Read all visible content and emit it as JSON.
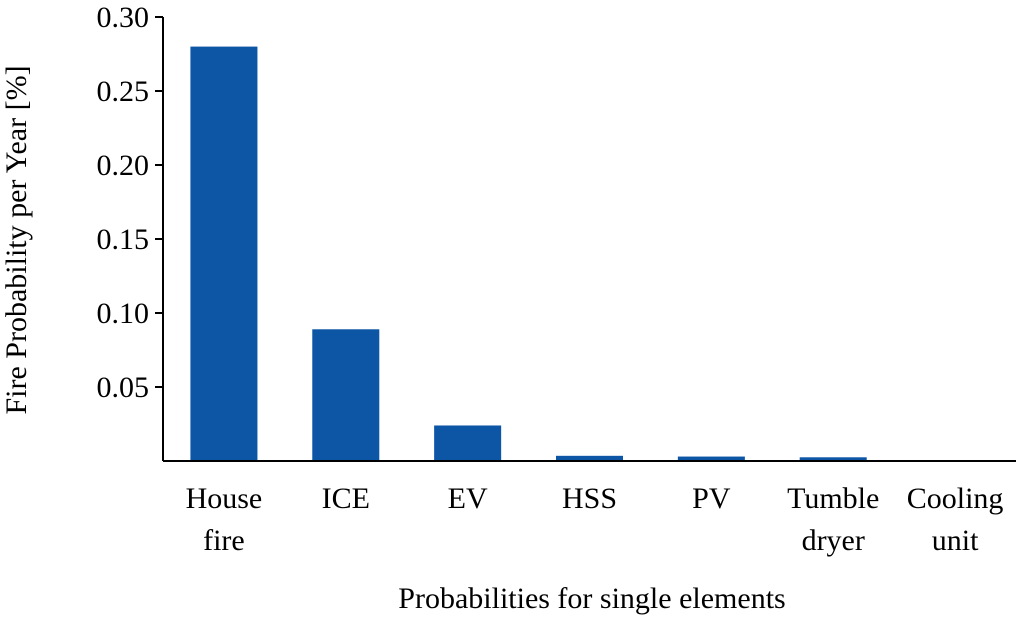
{
  "chart_data": {
    "type": "bar",
    "categories": [
      [
        "House",
        "fire"
      ],
      [
        "ICE"
      ],
      [
        "EV"
      ],
      [
        "HSS"
      ],
      [
        "PV"
      ],
      [
        "Tumble",
        "dryer"
      ],
      [
        "Cooling",
        "unit"
      ]
    ],
    "values": [
      0.28,
      0.089,
      0.024,
      0.0035,
      0.003,
      0.0025,
      0.0005
    ],
    "ylabel": "Fire Probability per Year [%]",
    "xlabel": "Probabilities for single elements",
    "ylim": [
      0,
      0.3
    ],
    "yticks": [
      "0.30",
      "0.25",
      "0.20",
      "0.15",
      "0.10",
      "0.05"
    ],
    "ytick_values": [
      0.3,
      0.25,
      0.2,
      0.15,
      0.1,
      0.05
    ],
    "bar_color": "#0d56a6",
    "grid": false,
    "legend": "none"
  }
}
